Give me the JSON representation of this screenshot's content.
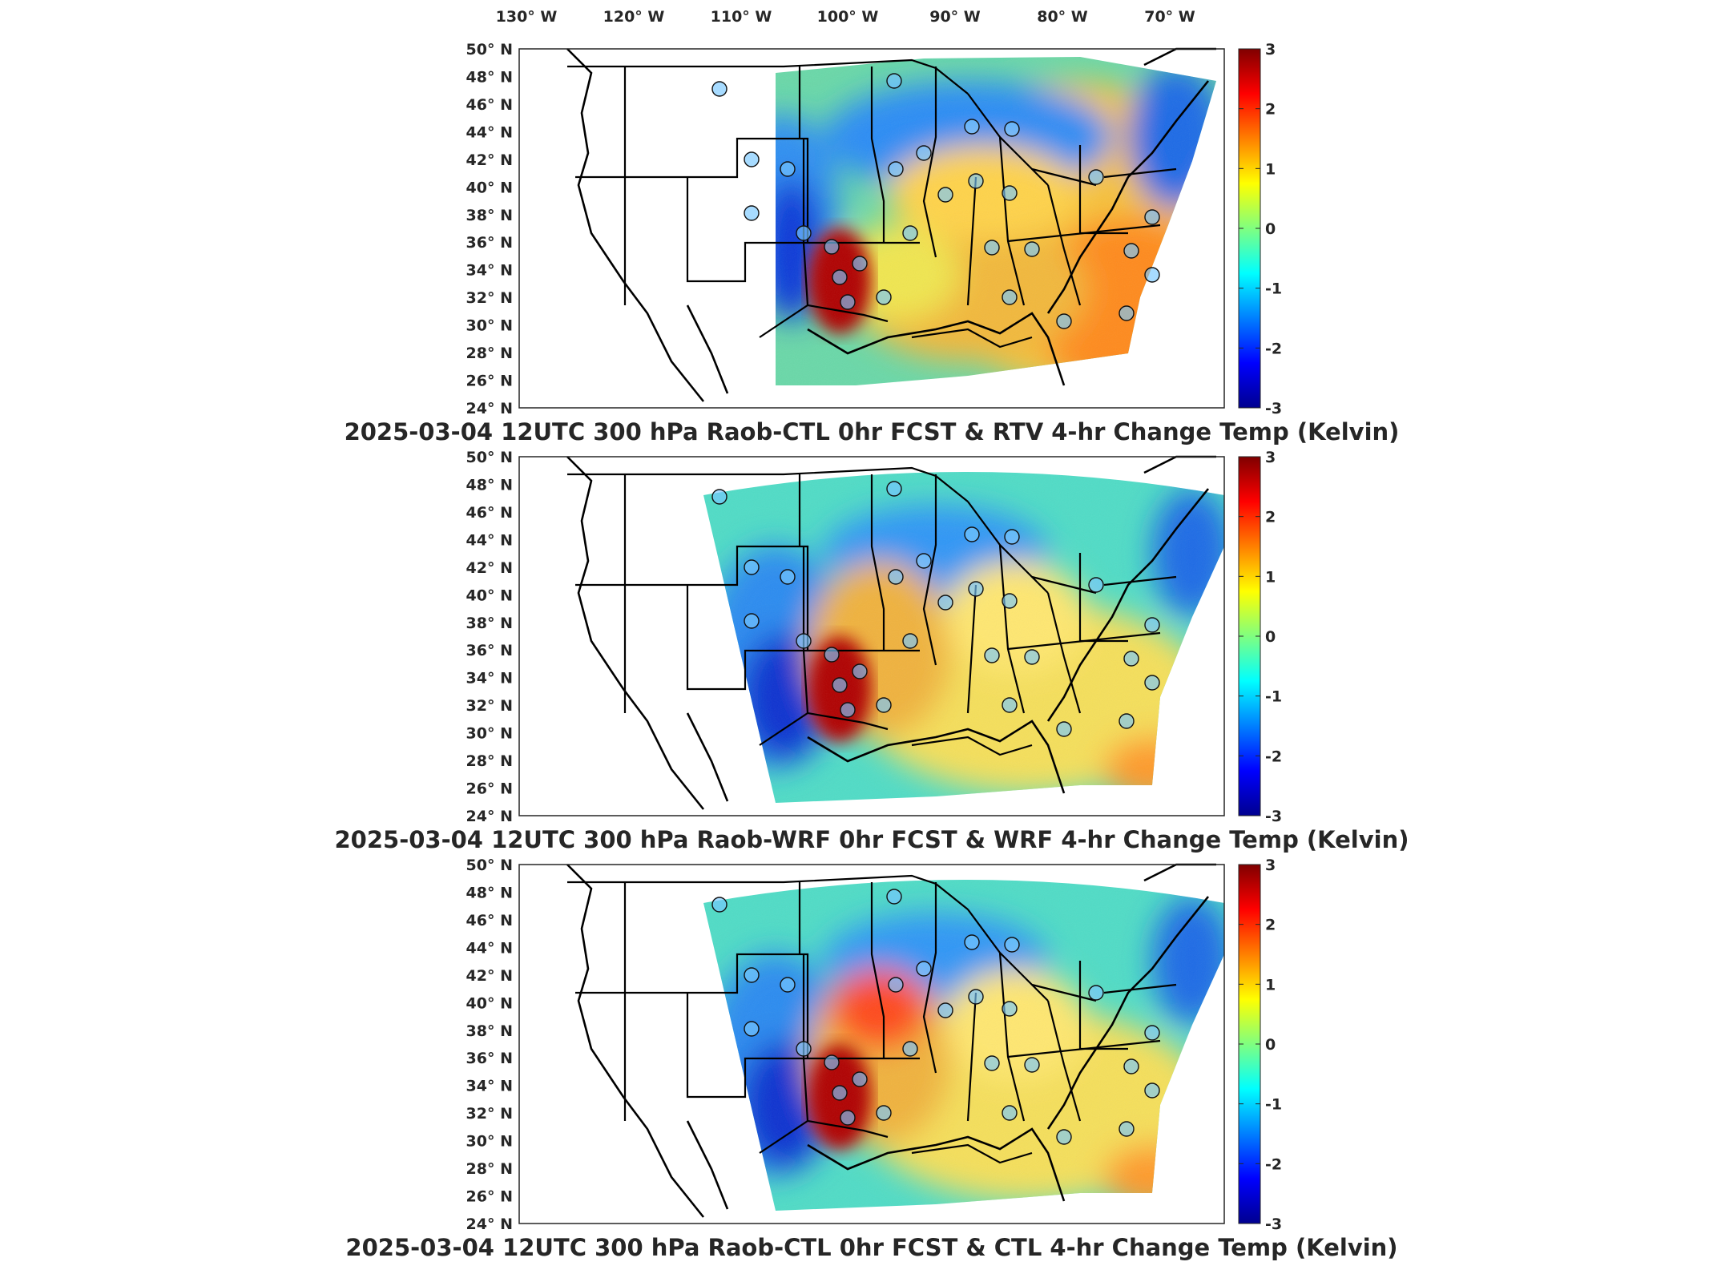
{
  "figure": {
    "lon_ticks": [
      "130",
      "120",
      "110",
      "100",
      "90",
      "80",
      "70"
    ],
    "lon_hemisphere": "W",
    "lat_ticks": [
      "50",
      "48",
      "46",
      "44",
      "42",
      "40",
      "38",
      "36",
      "34",
      "32",
      "30",
      "28",
      "26",
      "24"
    ],
    "lat_hemisphere": "N",
    "degree_symbol": "°",
    "colorbar": {
      "ticks": [
        "3",
        "2",
        "1",
        "0",
        "-1",
        "-2",
        "-3"
      ],
      "range": [
        -3,
        3
      ],
      "colormap": "jet",
      "colors": [
        "#00008f",
        "#0000ff",
        "#00ffff",
        "#ffff00",
        "#ff0000",
        "#800000"
      ]
    }
  },
  "panels": [
    {
      "id": "rtv",
      "title": "2025-03-04 12UTC 300 hPa Raob-CTL 0hr FCST & RTV 4-hr Change Temp (Kelvin)",
      "field_extent": "satellite swath (eastern US)",
      "observation_markers": "radiosonde circles"
    },
    {
      "id": "wrf",
      "title": "2025-03-04 12UTC 300 hPa Raob-WRF 0hr FCST & WRF 4-hr Change Temp (Kelvin)",
      "field_extent": "model domain",
      "observation_markers": "radiosonde circles"
    },
    {
      "id": "ctl",
      "title": "2025-03-04 12UTC 300 hPa Raob-CTL 0hr FCST & CTL 4-hr Change Temp (Kelvin)",
      "field_extent": "model domain",
      "observation_markers": "radiosonde circles"
    }
  ]
}
